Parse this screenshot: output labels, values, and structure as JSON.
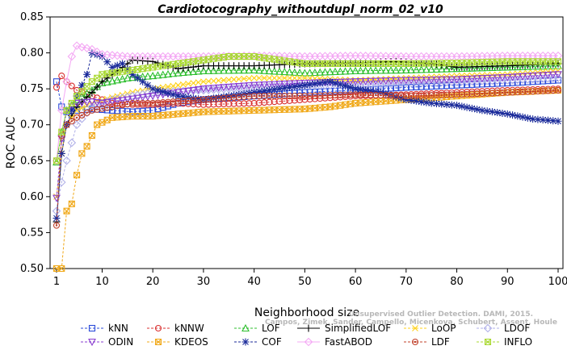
{
  "chart_data": {
    "type": "line",
    "title": "Cardiotocography_withoutdupl_norm_02_v10",
    "xlabel": "Neighborhood size",
    "ylabel": "ROC AUC",
    "xlim": [
      1,
      100
    ],
    "ylim": [
      0.5,
      0.85
    ],
    "x_ticks": [
      1,
      10,
      20,
      30,
      40,
      50,
      60,
      70,
      80,
      90,
      100
    ],
    "y_ticks": [
      0.5,
      0.55,
      0.6,
      0.65,
      0.7,
      0.75,
      0.8,
      0.85
    ],
    "x_tick_labels": [
      "1",
      "10",
      "20",
      "30",
      "40",
      "50",
      "60",
      "70",
      "80",
      "90",
      "100"
    ],
    "y_tick_labels": [
      "0.50",
      "0.55",
      "0.60",
      "0.65",
      "0.70",
      "0.75",
      "0.80",
      "0.85"
    ],
    "legend_placement": "bottom",
    "series": [
      {
        "name": "kNN",
        "color": "#2b4bd9",
        "marker": "square",
        "dash": "dashed",
        "points": [
          [
            1,
            0.76
          ],
          [
            2,
            0.725
          ],
          [
            3,
            0.718
          ],
          [
            5,
            0.72
          ],
          [
            8,
            0.722
          ],
          [
            12,
            0.72
          ],
          [
            16,
            0.718
          ],
          [
            20,
            0.72
          ],
          [
            25,
            0.73
          ],
          [
            30,
            0.735
          ],
          [
            40,
            0.74
          ],
          [
            50,
            0.745
          ],
          [
            60,
            0.748
          ],
          [
            70,
            0.752
          ],
          [
            80,
            0.755
          ],
          [
            90,
            0.758
          ],
          [
            100,
            0.762
          ]
        ]
      },
      {
        "name": "kNNW",
        "color": "#d93030",
        "marker": "circle",
        "dash": "dashed",
        "points": [
          [
            1,
            0.752
          ],
          [
            2,
            0.768
          ],
          [
            3,
            0.76
          ],
          [
            5,
            0.748
          ],
          [
            8,
            0.74
          ],
          [
            12,
            0.73
          ],
          [
            16,
            0.728
          ],
          [
            20,
            0.728
          ],
          [
            25,
            0.73
          ],
          [
            30,
            0.728
          ],
          [
            40,
            0.73
          ],
          [
            50,
            0.735
          ],
          [
            60,
            0.74
          ],
          [
            70,
            0.742
          ],
          [
            80,
            0.745
          ],
          [
            90,
            0.748
          ],
          [
            100,
            0.75
          ]
        ]
      },
      {
        "name": "LOF",
        "color": "#2fbf2f",
        "marker": "triangle-up",
        "dash": "dashed",
        "points": [
          [
            1,
            0.648
          ],
          [
            2,
            0.69
          ],
          [
            3,
            0.72
          ],
          [
            5,
            0.735
          ],
          [
            8,
            0.748
          ],
          [
            10,
            0.758
          ],
          [
            15,
            0.765
          ],
          [
            20,
            0.768
          ],
          [
            25,
            0.772
          ],
          [
            30,
            0.775
          ],
          [
            40,
            0.776
          ],
          [
            50,
            0.772
          ],
          [
            60,
            0.775
          ],
          [
            70,
            0.776
          ],
          [
            80,
            0.778
          ],
          [
            90,
            0.78
          ],
          [
            100,
            0.782
          ]
        ]
      },
      {
        "name": "SimplifiedLOF",
        "color": "#000000",
        "marker": "plus",
        "dash": "solid",
        "points": [
          [
            1,
            0.565
          ],
          [
            2,
            0.66
          ],
          [
            3,
            0.7
          ],
          [
            5,
            0.725
          ],
          [
            8,
            0.745
          ],
          [
            10,
            0.76
          ],
          [
            13,
            0.775
          ],
          [
            16,
            0.79
          ],
          [
            20,
            0.788
          ],
          [
            25,
            0.778
          ],
          [
            30,
            0.782
          ],
          [
            40,
            0.782
          ],
          [
            50,
            0.785
          ],
          [
            60,
            0.786
          ],
          [
            68,
            0.788
          ],
          [
            75,
            0.785
          ],
          [
            80,
            0.78
          ],
          [
            90,
            0.782
          ],
          [
            100,
            0.785
          ]
        ]
      },
      {
        "name": "LoOP",
        "color": "#ffd11a",
        "marker": "x",
        "dash": "dashed",
        "points": [
          [
            1,
            0.6
          ],
          [
            2,
            0.66
          ],
          [
            3,
            0.7
          ],
          [
            5,
            0.72
          ],
          [
            8,
            0.73
          ],
          [
            12,
            0.738
          ],
          [
            16,
            0.745
          ],
          [
            20,
            0.75
          ],
          [
            30,
            0.76
          ],
          [
            40,
            0.765
          ],
          [
            50,
            0.765
          ],
          [
            60,
            0.762
          ],
          [
            70,
            0.765
          ],
          [
            80,
            0.768
          ],
          [
            90,
            0.77
          ],
          [
            100,
            0.775
          ]
        ]
      },
      {
        "name": "LDOF",
        "color": "#b0b0e8",
        "marker": "diamond",
        "dash": "dashed",
        "points": [
          [
            1,
            0.58
          ],
          [
            2,
            0.62
          ],
          [
            3,
            0.65
          ],
          [
            5,
            0.7
          ],
          [
            8,
            0.725
          ],
          [
            12,
            0.735
          ],
          [
            16,
            0.74
          ],
          [
            20,
            0.745
          ],
          [
            30,
            0.748
          ],
          [
            40,
            0.752
          ],
          [
            50,
            0.755
          ],
          [
            60,
            0.755
          ],
          [
            70,
            0.758
          ],
          [
            80,
            0.76
          ],
          [
            90,
            0.762
          ],
          [
            100,
            0.765
          ]
        ]
      },
      {
        "name": "ODIN",
        "color": "#8a3fd0",
        "marker": "triangle-down",
        "dash": "dashed",
        "points": [
          [
            1,
            0.598
          ],
          [
            2,
            0.68
          ],
          [
            3,
            0.72
          ],
          [
            5,
            0.73
          ],
          [
            8,
            0.732
          ],
          [
            10,
            0.73
          ],
          [
            15,
            0.735
          ],
          [
            20,
            0.74
          ],
          [
            25,
            0.745
          ],
          [
            30,
            0.75
          ],
          [
            40,
            0.755
          ],
          [
            50,
            0.758
          ],
          [
            60,
            0.76
          ],
          [
            70,
            0.762
          ],
          [
            80,
            0.763
          ],
          [
            90,
            0.766
          ],
          [
            100,
            0.77
          ]
        ]
      },
      {
        "name": "KDEOS",
        "color": "#f0a818",
        "marker": "square-x",
        "dash": "dashed",
        "points": [
          [
            1,
            0.5
          ],
          [
            2,
            0.5
          ],
          [
            3,
            0.58
          ],
          [
            4,
            0.59
          ],
          [
            5,
            0.63
          ],
          [
            6,
            0.66
          ],
          [
            7,
            0.67
          ],
          [
            8,
            0.685
          ],
          [
            9,
            0.7
          ],
          [
            12,
            0.71
          ],
          [
            16,
            0.712
          ],
          [
            20,
            0.712
          ],
          [
            25,
            0.715
          ],
          [
            30,
            0.718
          ],
          [
            40,
            0.72
          ],
          [
            50,
            0.722
          ],
          [
            55,
            0.725
          ],
          [
            60,
            0.73
          ],
          [
            70,
            0.735
          ],
          [
            80,
            0.74
          ],
          [
            90,
            0.745
          ],
          [
            100,
            0.748
          ]
        ]
      },
      {
        "name": "COF",
        "color": "#1a2a9a",
        "marker": "star",
        "dash": "dashed",
        "points": [
          [
            1,
            0.57
          ],
          [
            2,
            0.66
          ],
          [
            3,
            0.7
          ],
          [
            5,
            0.74
          ],
          [
            7,
            0.77
          ],
          [
            8,
            0.8
          ],
          [
            10,
            0.795
          ],
          [
            12,
            0.78
          ],
          [
            14,
            0.785
          ],
          [
            16,
            0.77
          ],
          [
            20,
            0.75
          ],
          [
            25,
            0.74
          ],
          [
            30,
            0.735
          ],
          [
            40,
            0.745
          ],
          [
            50,
            0.755
          ],
          [
            55,
            0.76
          ],
          [
            60,
            0.75
          ],
          [
            65,
            0.745
          ],
          [
            70,
            0.735
          ],
          [
            75,
            0.73
          ],
          [
            80,
            0.727
          ],
          [
            85,
            0.72
          ],
          [
            90,
            0.715
          ],
          [
            95,
            0.708
          ],
          [
            100,
            0.705
          ]
        ]
      },
      {
        "name": "FastABOD",
        "color": "#f4a8f4",
        "marker": "diamond",
        "dash": "solid",
        "points": [
          [
            1,
            0.65
          ],
          [
            2,
            0.72
          ],
          [
            3,
            0.76
          ],
          [
            4,
            0.795
          ],
          [
            5,
            0.81
          ],
          [
            6,
            0.808
          ],
          [
            8,
            0.805
          ],
          [
            10,
            0.798
          ],
          [
            15,
            0.795
          ],
          [
            20,
            0.795
          ],
          [
            30,
            0.795
          ],
          [
            40,
            0.796
          ],
          [
            50,
            0.795
          ],
          [
            60,
            0.796
          ],
          [
            70,
            0.795
          ],
          [
            80,
            0.795
          ],
          [
            90,
            0.796
          ],
          [
            100,
            0.796
          ]
        ]
      },
      {
        "name": "LDF",
        "color": "#c0402a",
        "marker": "circle-dot",
        "dash": "dashed",
        "points": [
          [
            1,
            0.56
          ],
          [
            2,
            0.685
          ],
          [
            3,
            0.7
          ],
          [
            5,
            0.71
          ],
          [
            8,
            0.72
          ],
          [
            12,
            0.725
          ],
          [
            16,
            0.73
          ],
          [
            20,
            0.73
          ],
          [
            30,
            0.735
          ],
          [
            40,
            0.74
          ],
          [
            50,
            0.74
          ],
          [
            60,
            0.742
          ],
          [
            70,
            0.74
          ],
          [
            80,
            0.742
          ],
          [
            90,
            0.745
          ],
          [
            100,
            0.748
          ]
        ]
      },
      {
        "name": "INFLO",
        "color": "#a8d830",
        "marker": "square-x",
        "dash": "dashed",
        "points": [
          [
            1,
            0.65
          ],
          [
            2,
            0.69
          ],
          [
            3,
            0.72
          ],
          [
            5,
            0.74
          ],
          [
            8,
            0.76
          ],
          [
            10,
            0.77
          ],
          [
            15,
            0.775
          ],
          [
            20,
            0.78
          ],
          [
            25,
            0.785
          ],
          [
            30,
            0.79
          ],
          [
            35,
            0.795
          ],
          [
            40,
            0.795
          ],
          [
            45,
            0.79
          ],
          [
            50,
            0.785
          ],
          [
            60,
            0.785
          ],
          [
            70,
            0.785
          ],
          [
            80,
            0.786
          ],
          [
            90,
            0.788
          ],
          [
            100,
            0.788
          ]
        ]
      }
    ]
  },
  "watermark": {
    "line1": "Unsupervised Outlier Detection. DAMI, 2015.",
    "line2": "Campos, Zimek, Sander, Campello, Micenkova, Schubert, Assent, Houle"
  }
}
